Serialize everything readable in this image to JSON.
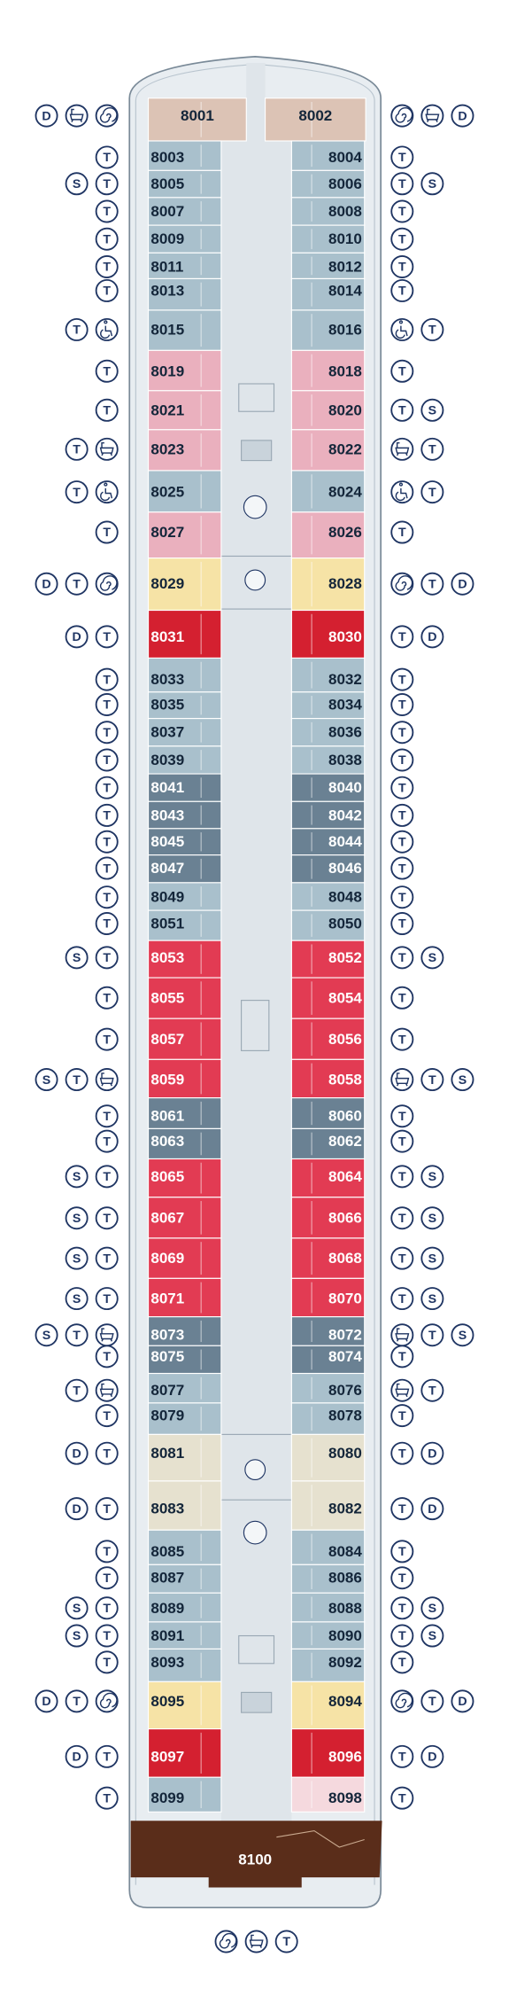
{
  "deck": {
    "rows": [
      {
        "left": {
          "cabin": "8001",
          "color": "#dcc3b5",
          "badges": [
            "D"
          ]
        },
        "right": {
          "cabin": "8002",
          "color": "#dcc3b5",
          "badges": [
            "D"
          ]
        }
      },
      {
        "left": {
          "cabin": "8003",
          "color": "#a9c0cc",
          "badges": [
            "T"
          ]
        },
        "right": {
          "cabin": "8004",
          "color": "#a9c0cc",
          "badges": [
            "T"
          ]
        }
      },
      {
        "left": {
          "cabin": "8005",
          "color": "#a9c0cc",
          "badges": [
            "S",
            "T"
          ]
        },
        "right": {
          "cabin": "8006",
          "color": "#a9c0cc",
          "badges": [
            "T",
            "S"
          ]
        }
      },
      {
        "left": {
          "cabin": "8007",
          "color": "#a9c0cc",
          "badges": [
            "T"
          ]
        },
        "right": {
          "cabin": "8008",
          "color": "#a9c0cc",
          "badges": [
            "T"
          ]
        }
      },
      {
        "left": {
          "cabin": "8009",
          "color": "#a9c0cc",
          "badges": [
            "T"
          ]
        },
        "right": {
          "cabin": "8010",
          "color": "#a9c0cc",
          "badges": [
            "T"
          ]
        }
      },
      {
        "left": {
          "cabin": "8011",
          "color": "#a9c0cc",
          "badges": [
            "T"
          ]
        },
        "right": {
          "cabin": "8012",
          "color": "#a9c0cc",
          "badges": [
            "T"
          ]
        }
      },
      {
        "left": {
          "cabin": "8013",
          "color": "#a9c0cc",
          "badges": [
            "T"
          ]
        },
        "right": {
          "cabin": "8014",
          "color": "#a9c0cc",
          "badges": [
            "T"
          ]
        }
      },
      {
        "left": {
          "cabin": "8015",
          "color": "#a9c0cc",
          "badges": [
            "T"
          ]
        },
        "right": {
          "cabin": "8016",
          "color": "#a9c0cc",
          "badges": [
            "T"
          ]
        }
      },
      {
        "left": {
          "cabin": "8019",
          "color": "#eab0be",
          "badges": [
            "T"
          ]
        },
        "right": {
          "cabin": "8018",
          "color": "#eab0be",
          "badges": [
            "T"
          ]
        }
      },
      {
        "left": {
          "cabin": "8021",
          "color": "#eab0be",
          "badges": [
            "T"
          ]
        },
        "right": {
          "cabin": "8020",
          "color": "#eab0be",
          "badges": [
            "T",
            "S"
          ]
        }
      },
      {
        "left": {
          "cabin": "8023",
          "color": "#eab0be",
          "badges": [
            "T"
          ]
        },
        "right": {
          "cabin": "8022",
          "color": "#eab0be",
          "badges": [
            "T"
          ]
        }
      },
      {
        "left": {
          "cabin": "8025",
          "color": "#a9c0cc",
          "badges": [
            "T"
          ]
        },
        "right": {
          "cabin": "8024",
          "color": "#a9c0cc",
          "badges": [
            "T"
          ]
        }
      },
      {
        "left": {
          "cabin": "8027",
          "color": "#eab0be",
          "badges": [
            "T"
          ]
        },
        "right": {
          "cabin": "8026",
          "color": "#eab0be",
          "badges": [
            "T"
          ]
        }
      },
      {
        "left": {
          "cabin": "8029",
          "color": "#f6e3a6",
          "badges": [
            "D",
            "T"
          ]
        },
        "right": {
          "cabin": "8028",
          "color": "#f6e3a6",
          "badges": [
            "T",
            "D"
          ]
        }
      },
      {
        "left": {
          "cabin": "8031",
          "color": "#d42030",
          "badges": [
            "D",
            "T"
          ]
        },
        "right": {
          "cabin": "8030",
          "color": "#d42030",
          "badges": [
            "T",
            "D"
          ]
        }
      },
      {
        "left": {
          "cabin": "8033",
          "color": "#a9c0cc",
          "badges": [
            "T"
          ]
        },
        "right": {
          "cabin": "8032",
          "color": "#a9c0cc",
          "badges": [
            "T"
          ]
        }
      },
      {
        "left": {
          "cabin": "8035",
          "color": "#a9c0cc",
          "badges": [
            "T"
          ]
        },
        "right": {
          "cabin": "8034",
          "color": "#a9c0cc",
          "badges": [
            "T"
          ]
        }
      },
      {
        "left": {
          "cabin": "8037",
          "color": "#a9c0cc",
          "badges": [
            "T"
          ]
        },
        "right": {
          "cabin": "8036",
          "color": "#a9c0cc",
          "badges": [
            "T"
          ]
        }
      },
      {
        "left": {
          "cabin": "8039",
          "color": "#a9c0cc",
          "badges": [
            "T"
          ]
        },
        "right": {
          "cabin": "8038",
          "color": "#a9c0cc",
          "badges": [
            "T"
          ]
        }
      },
      {
        "left": {
          "cabin": "8041",
          "color": "#6a8193",
          "badges": [
            "T"
          ]
        },
        "right": {
          "cabin": "8040",
          "color": "#6a8193",
          "badges": [
            "T"
          ]
        }
      },
      {
        "left": {
          "cabin": "8043",
          "color": "#6a8193",
          "badges": [
            "T"
          ]
        },
        "right": {
          "cabin": "8042",
          "color": "#6a8193",
          "badges": [
            "T"
          ]
        }
      },
      {
        "left": {
          "cabin": "8045",
          "color": "#6a8193",
          "badges": [
            "T"
          ]
        },
        "right": {
          "cabin": "8044",
          "color": "#6a8193",
          "badges": [
            "T"
          ]
        }
      },
      {
        "left": {
          "cabin": "8047",
          "color": "#6a8193",
          "badges": [
            "T"
          ]
        },
        "right": {
          "cabin": "8046",
          "color": "#6a8193",
          "badges": [
            "T"
          ]
        }
      },
      {
        "left": {
          "cabin": "8049",
          "color": "#a9c0cc",
          "badges": [
            "T"
          ]
        },
        "right": {
          "cabin": "8048",
          "color": "#a9c0cc",
          "badges": [
            "T"
          ]
        }
      },
      {
        "left": {
          "cabin": "8051",
          "color": "#a9c0cc",
          "badges": [
            "T"
          ]
        },
        "right": {
          "cabin": "8050",
          "color": "#a9c0cc",
          "badges": [
            "T"
          ]
        }
      },
      {
        "left": {
          "cabin": "8053",
          "color": "#e23b53",
          "badges": [
            "S",
            "T"
          ]
        },
        "right": {
          "cabin": "8052",
          "color": "#e23b53",
          "badges": [
            "T",
            "S"
          ]
        }
      },
      {
        "left": {
          "cabin": "8055",
          "color": "#e23b53",
          "badges": [
            "T"
          ]
        },
        "right": {
          "cabin": "8054",
          "color": "#e23b53",
          "badges": [
            "T"
          ]
        }
      },
      {
        "left": {
          "cabin": "8057",
          "color": "#e23b53",
          "badges": [
            "T"
          ]
        },
        "right": {
          "cabin": "8056",
          "color": "#e23b53",
          "badges": [
            "T"
          ]
        }
      },
      {
        "left": {
          "cabin": "8059",
          "color": "#e23b53",
          "badges": [
            "S",
            "T"
          ]
        },
        "right": {
          "cabin": "8058",
          "color": "#e23b53",
          "badges": [
            "T",
            "S"
          ]
        }
      },
      {
        "left": {
          "cabin": "8061",
          "color": "#6a8193",
          "badges": [
            "T"
          ]
        },
        "right": {
          "cabin": "8060",
          "color": "#6a8193",
          "badges": [
            "T"
          ]
        }
      },
      {
        "left": {
          "cabin": "8063",
          "color": "#6a8193",
          "badges": [
            "T"
          ]
        },
        "right": {
          "cabin": "8062",
          "color": "#6a8193",
          "badges": [
            "T"
          ]
        }
      },
      {
        "left": {
          "cabin": "8065",
          "color": "#e23b53",
          "badges": [
            "S",
            "T"
          ]
        },
        "right": {
          "cabin": "8064",
          "color": "#e23b53",
          "badges": [
            "T",
            "S"
          ]
        }
      },
      {
        "left": {
          "cabin": "8067",
          "color": "#e23b53",
          "badges": [
            "S",
            "T"
          ]
        },
        "right": {
          "cabin": "8066",
          "color": "#e23b53",
          "badges": [
            "T",
            "S"
          ]
        }
      },
      {
        "left": {
          "cabin": "8069",
          "color": "#e23b53",
          "badges": [
            "S",
            "T"
          ]
        },
        "right": {
          "cabin": "8068",
          "color": "#e23b53",
          "badges": [
            "T",
            "S"
          ]
        }
      },
      {
        "left": {
          "cabin": "8071",
          "color": "#e23b53",
          "badges": [
            "S",
            "T"
          ]
        },
        "right": {
          "cabin": "8070",
          "color": "#e23b53",
          "badges": [
            "T",
            "S"
          ]
        }
      },
      {
        "left": {
          "cabin": "8073",
          "color": "#6a8193",
          "badges": [
            "S",
            "T"
          ]
        },
        "right": {
          "cabin": "8072",
          "color": "#6a8193",
          "badges": [
            "T",
            "S"
          ]
        }
      },
      {
        "left": {
          "cabin": "8075",
          "color": "#6a8193",
          "badges": [
            "T"
          ]
        },
        "right": {
          "cabin": "8074",
          "color": "#6a8193",
          "badges": [
            "T"
          ]
        }
      },
      {
        "left": {
          "cabin": "8077",
          "color": "#a9c0cc",
          "badges": [
            "T"
          ]
        },
        "right": {
          "cabin": "8076",
          "color": "#a9c0cc",
          "badges": [
            "T"
          ]
        }
      },
      {
        "left": {
          "cabin": "8079",
          "color": "#a9c0cc",
          "badges": [
            "T"
          ]
        },
        "right": {
          "cabin": "8078",
          "color": "#a9c0cc",
          "badges": [
            "T"
          ]
        }
      },
      {
        "left": {
          "cabin": "8081",
          "color": "#e6e1cf",
          "badges": [
            "D",
            "T"
          ]
        },
        "right": {
          "cabin": "8080",
          "color": "#e6e1cf",
          "badges": [
            "T",
            "D"
          ]
        }
      },
      {
        "left": {
          "cabin": "8083",
          "color": "#e6e1cf",
          "badges": [
            "D",
            "T"
          ]
        },
        "right": {
          "cabin": "8082",
          "color": "#e6e1cf",
          "badges": [
            "T",
            "D"
          ]
        }
      },
      {
        "left": {
          "cabin": "8085",
          "color": "#a9c0cc",
          "badges": [
            "T"
          ]
        },
        "right": {
          "cabin": "8084",
          "color": "#a9c0cc",
          "badges": [
            "T"
          ]
        }
      },
      {
        "left": {
          "cabin": "8087",
          "color": "#a9c0cc",
          "badges": [
            "T"
          ]
        },
        "right": {
          "cabin": "8086",
          "color": "#a9c0cc",
          "badges": [
            "T"
          ]
        }
      },
      {
        "left": {
          "cabin": "8089",
          "color": "#a9c0cc",
          "badges": [
            "S",
            "T"
          ]
        },
        "right": {
          "cabin": "8088",
          "color": "#a9c0cc",
          "badges": [
            "T",
            "S"
          ]
        }
      },
      {
        "left": {
          "cabin": "8091",
          "color": "#a9c0cc",
          "badges": [
            "S",
            "T"
          ]
        },
        "right": {
          "cabin": "8090",
          "color": "#a9c0cc",
          "badges": [
            "T",
            "S"
          ]
        }
      },
      {
        "left": {
          "cabin": "8093",
          "color": "#a9c0cc",
          "badges": [
            "T"
          ]
        },
        "right": {
          "cabin": "8092",
          "color": "#a9c0cc",
          "badges": [
            "T"
          ]
        }
      },
      {
        "left": {
          "cabin": "8095",
          "color": "#f6e3a6",
          "badges": [
            "D",
            "T"
          ]
        },
        "right": {
          "cabin": "8094",
          "color": "#f6e3a6",
          "badges": [
            "T",
            "D"
          ]
        }
      },
      {
        "left": {
          "cabin": "8097",
          "color": "#d42030",
          "badges": [
            "D",
            "T"
          ]
        },
        "right": {
          "cabin": "8096",
          "color": "#d42030",
          "badges": [
            "T",
            "D"
          ]
        }
      },
      {
        "left": {
          "cabin": "8099",
          "color": "#a9c0cc",
          "badges": [
            "T"
          ]
        },
        "right": {
          "cabin": "8098",
          "color": "#f5d9de",
          "badges": [
            "T"
          ]
        }
      }
    ],
    "aft": {
      "cabin": "8100",
      "color": "#5a2d1a",
      "badges": [
        "T"
      ]
    }
  }
}
